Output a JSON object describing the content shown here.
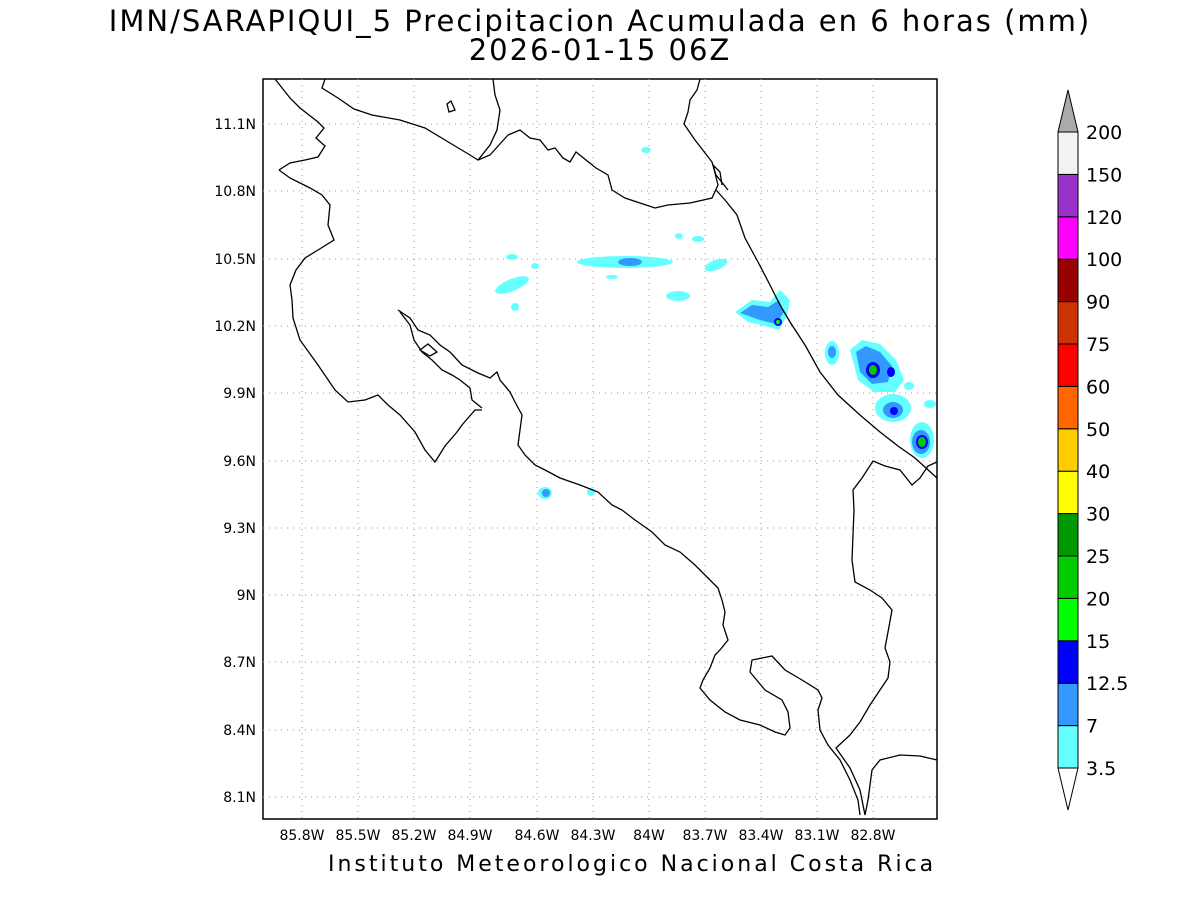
{
  "title_line1": "IMN/SARAPIQUI_5 Precipitacion Acumulada en 6 horas (mm)",
  "title_line2": "2026-01-15 06Z",
  "footer": "Instituto Meteorologico Nacional Costa Rica",
  "map": {
    "lon_labels": [
      "85.8W",
      "85.5W",
      "85.2W",
      "84.9W",
      "84.6W",
      "84.3W",
      "84W",
      "83.7W",
      "83.4W",
      "83.1W",
      "82.8W"
    ],
    "lat_labels": [
      "11.1N",
      "10.8N",
      "10.5N",
      "10.2N",
      "9.9N",
      "9.6N",
      "9.3N",
      "9N",
      "8.7N",
      "8.4N",
      "8.1N"
    ],
    "grid": true,
    "coastline_color": "#000000"
  },
  "colorbar": {
    "labels": [
      "3.5",
      "7",
      "12.5",
      "15",
      "20",
      "25",
      "30",
      "40",
      "50",
      "60",
      "75",
      "90",
      "100",
      "120",
      "150",
      "200"
    ],
    "colors": [
      "#66ffff",
      "#3399ff",
      "#0000ff",
      "#00ff00",
      "#00cc00",
      "#009900",
      "#ffff00",
      "#ffcc00",
      "#ff6600",
      "#ff0000",
      "#cc3300",
      "#990000",
      "#ff00ff",
      "#9933cc",
      "#f2f2f2",
      "#aaaaaa"
    ]
  }
}
